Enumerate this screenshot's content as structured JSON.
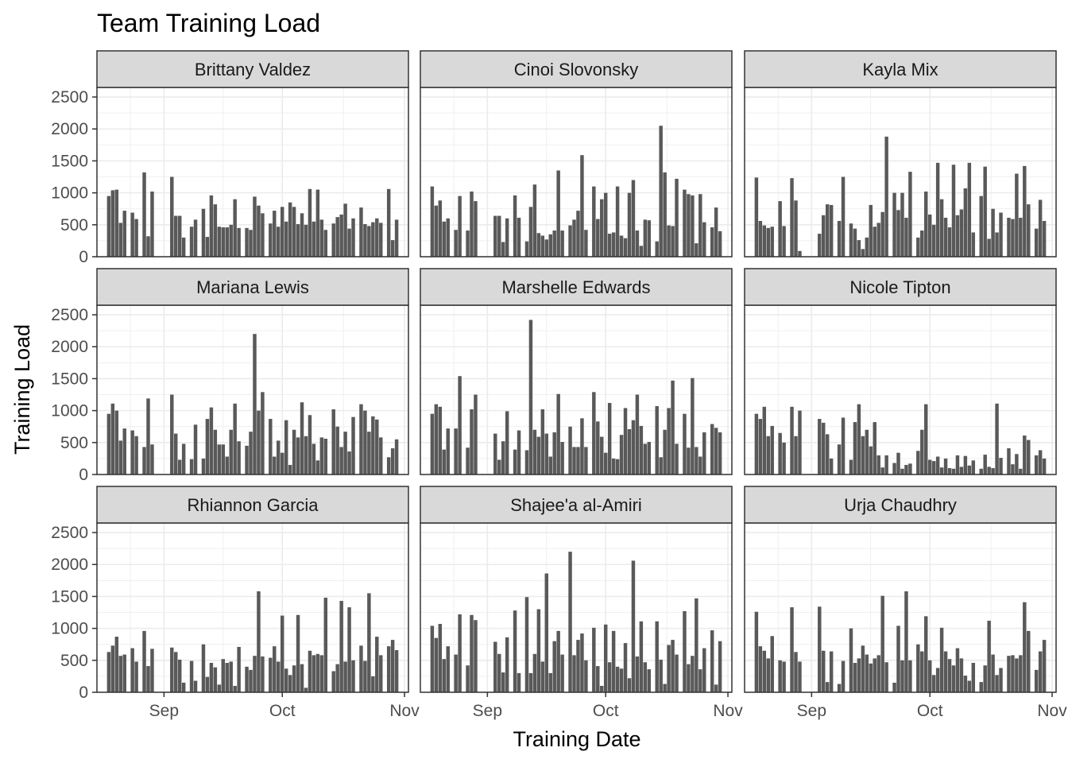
{
  "chart_data": {
    "type": "bar",
    "layout": "facet-grid-3x3",
    "title": "Team Training Load",
    "xlabel": "Training Date",
    "ylabel": "Training Load",
    "ylim": [
      0,
      2650
    ],
    "xlim": [
      "2024-08-15",
      "2024-11-02"
    ],
    "yticks": [
      0,
      500,
      1000,
      1500,
      2000,
      2500
    ],
    "xticks": [
      {
        "label": "Sep",
        "date": "2024-09-01"
      },
      {
        "label": "Oct",
        "date": "2024-10-01"
      },
      {
        "label": "Nov",
        "date": "2024-11-01"
      }
    ],
    "grid": true,
    "bar_color": "#595959",
    "strip_color": "#d9d9d9",
    "grid_color": "#ebebeb",
    "border_color": "#333333",
    "dates": [
      "2024-08-18",
      "2024-08-19",
      "2024-08-20",
      "2024-08-21",
      "2024-08-22",
      "2024-08-24",
      "2024-08-25",
      "2024-08-27",
      "2024-08-28",
      "2024-08-29",
      "2024-09-03",
      "2024-09-04",
      "2024-09-05",
      "2024-09-06",
      "2024-09-08",
      "2024-09-09",
      "2024-09-11",
      "2024-09-12",
      "2024-09-13",
      "2024-09-14",
      "2024-09-15",
      "2024-09-16",
      "2024-09-17",
      "2024-09-18",
      "2024-09-19",
      "2024-09-20",
      "2024-09-22",
      "2024-09-23",
      "2024-09-24",
      "2024-09-25",
      "2024-09-26",
      "2024-09-28",
      "2024-09-29",
      "2024-09-30",
      "2024-10-01",
      "2024-10-02",
      "2024-10-03",
      "2024-10-04",
      "2024-10-05",
      "2024-10-06",
      "2024-10-07",
      "2024-10-08",
      "2024-10-09",
      "2024-10-10",
      "2024-10-11",
      "2024-10-12",
      "2024-10-14",
      "2024-10-15",
      "2024-10-16",
      "2024-10-17",
      "2024-10-18",
      "2024-10-19",
      "2024-10-21",
      "2024-10-22",
      "2024-10-23",
      "2024-10-24",
      "2024-10-25",
      "2024-10-26",
      "2024-10-28",
      "2024-10-29",
      "2024-10-30"
    ],
    "panels": [
      {
        "name": "Brittany Valdez",
        "values": [
          950,
          1040,
          1050,
          530,
          720,
          690,
          590,
          1320,
          320,
          1020,
          1250,
          640,
          640,
          300,
          470,
          580,
          750,
          310,
          960,
          820,
          470,
          460,
          460,
          500,
          900,
          450,
          450,
          420,
          940,
          800,
          680,
          520,
          720,
          470,
          780,
          550,
          850,
          780,
          510,
          680,
          500,
          1060,
          550,
          1050,
          580,
          420,
          520,
          620,
          660,
          830,
          440,
          600,
          770,
          510,
          480,
          540,
          600,
          530,
          1060,
          260,
          580
        ]
      },
      {
        "name": "Cinoi Slovonsky",
        "values": [
          1100,
          800,
          880,
          550,
          600,
          420,
          950,
          410,
          1020,
          870,
          640,
          640,
          230,
          600,
          960,
          610,
          240,
          780,
          1130,
          370,
          330,
          270,
          350,
          410,
          1350,
          410,
          490,
          580,
          720,
          1590,
          420,
          1100,
          590,
          900,
          1000,
          360,
          380,
          1100,
          330,
          290,
          1000,
          1200,
          410,
          170,
          580,
          570,
          240,
          2050,
          1320,
          490,
          480,
          1220,
          1050,
          980,
          960,
          210,
          980,
          540,
          460,
          770,
          400
        ]
      },
      {
        "name": "Kayla Mix",
        "values": [
          1240,
          560,
          490,
          450,
          470,
          870,
          480,
          1230,
          880,
          90,
          360,
          650,
          820,
          810,
          560,
          1250,
          520,
          440,
          260,
          120,
          300,
          810,
          470,
          530,
          700,
          1880,
          1000,
          730,
          1000,
          610,
          1330,
          300,
          410,
          1020,
          660,
          500,
          1470,
          900,
          610,
          460,
          1440,
          650,
          740,
          1070,
          1470,
          380,
          950,
          1410,
          280,
          750,
          380,
          690,
          610,
          590,
          1300,
          610,
          1420,
          820,
          440,
          890,
          560
        ]
      },
      {
        "name": "Mariana Lewis",
        "values": [
          950,
          1110,
          1000,
          530,
          720,
          690,
          600,
          430,
          1190,
          470,
          1250,
          640,
          230,
          480,
          240,
          780,
          250,
          870,
          1050,
          700,
          470,
          470,
          280,
          700,
          1110,
          520,
          450,
          670,
          2200,
          1000,
          1290,
          870,
          280,
          530,
          340,
          850,
          150,
          700,
          580,
          1130,
          600,
          930,
          480,
          220,
          580,
          560,
          1020,
          750,
          430,
          670,
          360,
          900,
          1100,
          1000,
          670,
          910,
          860,
          580,
          270,
          410,
          550
        ]
      },
      {
        "name": "Marshelle Edwards",
        "values": [
          950,
          1100,
          1060,
          390,
          720,
          720,
          1540,
          420,
          1020,
          1250,
          640,
          230,
          520,
          990,
          390,
          690,
          380,
          2420,
          700,
          590,
          1020,
          640,
          280,
          660,
          1260,
          510,
          750,
          430,
          430,
          880,
          430,
          1290,
          830,
          590,
          340,
          1120,
          250,
          240,
          620,
          1040,
          710,
          850,
          1250,
          760,
          480,
          510,
          1070,
          270,
          700,
          1040,
          1470,
          480,
          950,
          420,
          1510,
          430,
          280,
          660,
          790,
          730,
          660
        ]
      },
      {
        "name": "Nicole Tipton",
        "values": [
          950,
          870,
          1060,
          600,
          760,
          650,
          500,
          1060,
          600,
          1000,
          870,
          810,
          630,
          250,
          470,
          890,
          230,
          820,
          1100,
          600,
          700,
          440,
          820,
          300,
          110,
          300,
          180,
          340,
          90,
          150,
          170,
          370,
          700,
          1100,
          230,
          210,
          280,
          110,
          250,
          100,
          90,
          300,
          120,
          290,
          140,
          220,
          90,
          310,
          120,
          100,
          1110,
          260,
          410,
          160,
          320,
          90,
          610,
          540,
          300,
          380,
          250
        ]
      },
      {
        "name": "Rhiannon Garcia",
        "values": [
          630,
          730,
          870,
          570,
          590,
          690,
          480,
          960,
          410,
          680,
          700,
          630,
          510,
          150,
          490,
          180,
          750,
          240,
          460,
          390,
          120,
          520,
          460,
          480,
          100,
          710,
          400,
          350,
          570,
          1580,
          560,
          540,
          720,
          480,
          1200,
          370,
          270,
          420,
          1210,
          440,
          70,
          650,
          580,
          600,
          580,
          1480,
          330,
          440,
          1430,
          480,
          1330,
          500,
          730,
          490,
          1550,
          250,
          870,
          580,
          720,
          820,
          660
        ]
      },
      {
        "name": "Shajee'a al-Amiri",
        "values": [
          1040,
          850,
          1070,
          520,
          720,
          590,
          1220,
          420,
          1210,
          1130,
          790,
          600,
          310,
          860,
          1280,
          300,
          1490,
          300,
          600,
          1300,
          480,
          1860,
          300,
          800,
          960,
          590,
          2200,
          580,
          820,
          920,
          500,
          1010,
          410,
          100,
          1060,
          470,
          960,
          400,
          370,
          770,
          220,
          2060,
          560,
          1110,
          470,
          360,
          1110,
          510,
          130,
          740,
          820,
          590,
          1270,
          440,
          570,
          1470,
          360,
          690,
          970,
          120,
          800
        ]
      },
      {
        "name": "Urja Chaudhry",
        "values": [
          1260,
          720,
          650,
          530,
          880,
          500,
          480,
          1330,
          630,
          480,
          1340,
          650,
          160,
          640,
          130,
          490,
          1000,
          460,
          530,
          730,
          590,
          450,
          530,
          580,
          1510,
          470,
          150,
          1040,
          500,
          1580,
          500,
          750,
          640,
          1190,
          500,
          270,
          380,
          1010,
          640,
          520,
          420,
          690,
          530,
          260,
          180,
          460,
          160,
          420,
          1120,
          590,
          270,
          380,
          570,
          580,
          530,
          580,
          1410,
          960,
          350,
          640,
          820
        ]
      }
    ]
  }
}
